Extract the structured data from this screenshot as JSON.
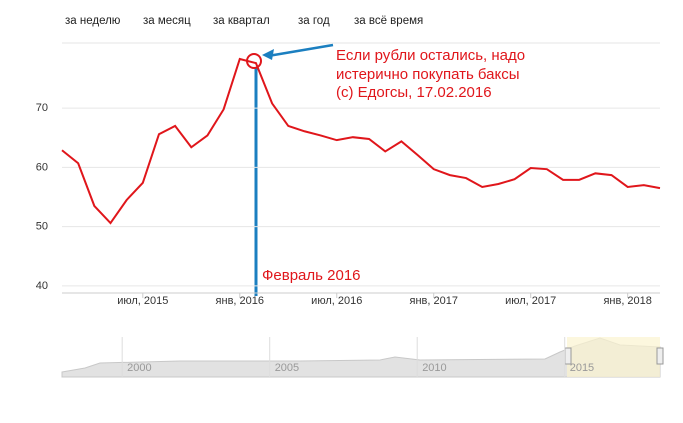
{
  "nav": [
    "за неделю",
    "за месяц",
    "за квартал",
    "за год",
    "за всё время"
  ],
  "chart_data": {
    "type": "line",
    "x": [
      "2015-02",
      "2015-03",
      "2015-04",
      "2015-05",
      "2015-06",
      "2015-07",
      "2015-08",
      "2015-09",
      "2015-10",
      "2015-11",
      "2015-12",
      "2016-01",
      "2016-02",
      "2016-03",
      "2016-04",
      "2016-05",
      "2016-06",
      "2016-07",
      "2016-08",
      "2016-09",
      "2016-10",
      "2016-11",
      "2016-12",
      "2017-01",
      "2017-02",
      "2017-03",
      "2017-04",
      "2017-05",
      "2017-06",
      "2017-07",
      "2017-08",
      "2017-09",
      "2017-10",
      "2017-11",
      "2017-12",
      "2018-01",
      "2018-02",
      "2018-03"
    ],
    "series": [
      {
        "color": "#e0161b",
        "values": [
          62.9,
          60.7,
          53.5,
          50.6,
          54.5,
          57.4,
          65.6,
          67.0,
          63.4,
          65.4,
          69.8,
          78.3,
          77.6,
          70.8,
          67.0,
          66.1,
          65.4,
          64.6,
          65.1,
          64.8,
          62.7,
          64.4,
          62.1,
          59.7,
          58.7,
          58.2,
          56.7,
          57.2,
          58.0,
          59.9,
          59.7,
          57.9,
          57.9,
          59.0,
          58.7,
          56.7,
          57.0,
          56.5
        ]
      }
    ],
    "xlim": [
      "2015-02",
      "2018-03"
    ],
    "xticks": [
      {
        "value": "2015-07",
        "label": "июл, 2015"
      },
      {
        "value": "2016-01",
        "label": "янв, 2016"
      },
      {
        "value": "2016-07",
        "label": "июл, 2016"
      },
      {
        "value": "2017-01",
        "label": "янв, 2017"
      },
      {
        "value": "2017-07",
        "label": "июл, 2017"
      },
      {
        "value": "2018-01",
        "label": "янв, 2018"
      }
    ],
    "ylim": [
      38.8,
      81
    ],
    "yticks": [
      40,
      50,
      60,
      70
    ],
    "grid": true,
    "annotations": [
      "Если рубли остались, надо",
      "истерично покупать баксы",
      "(с) Едогсы, 17.02.2016",
      "Февраль 2016"
    ],
    "navigator": {
      "xlim": [
        1997.96,
        2018.23
      ],
      "xticks": [
        2000,
        2005,
        2010,
        2015
      ]
    }
  }
}
